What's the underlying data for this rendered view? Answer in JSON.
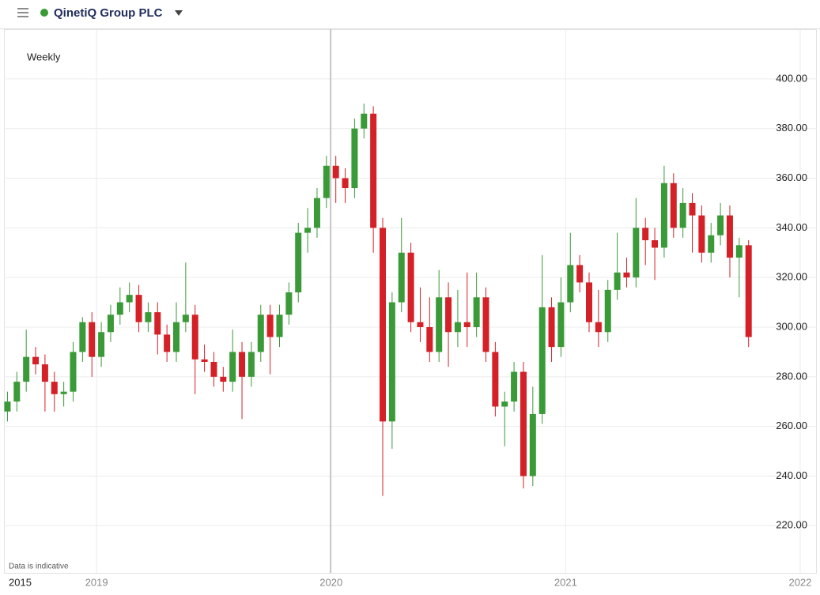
{
  "chart_data": {
    "type": "candlestick",
    "title": "QinetiQ Group PLC",
    "subtitle": "Weekly",
    "note": "Data is indicative",
    "corner_label": "2015",
    "up_color": "#3a9a37",
    "down_color": "#d42027",
    "grid": true,
    "xlim": [
      2018.605,
      2022.071
    ],
    "xticks": [
      2019,
      2020,
      2021,
      2022
    ],
    "ylim": [
      201,
      420
    ],
    "yticks": [
      {
        "value": 220,
        "label": "220.00"
      },
      {
        "value": 240,
        "label": "240.00"
      },
      {
        "value": 260,
        "label": "260.00"
      },
      {
        "value": 280,
        "label": "280.00"
      },
      {
        "value": 300,
        "label": "300.00"
      },
      {
        "value": 320,
        "label": "320.00"
      },
      {
        "value": 340,
        "label": "340.00"
      },
      {
        "value": 360,
        "label": "360.00"
      },
      {
        "value": 380,
        "label": "380.00"
      },
      {
        "value": 400,
        "label": "400.00"
      }
    ],
    "x": [
      2018.62,
      2018.66,
      2018.7,
      2018.74,
      2018.78,
      2018.82,
      2018.86,
      2018.9,
      2018.94,
      2018.98,
      2019.02,
      2019.06,
      2019.1,
      2019.14,
      2019.18,
      2019.22,
      2019.26,
      2019.3,
      2019.34,
      2019.38,
      2019.42,
      2019.46,
      2019.5,
      2019.54,
      2019.58,
      2019.62,
      2019.66,
      2019.7,
      2019.74,
      2019.78,
      2019.82,
      2019.86,
      2019.9,
      2019.94,
      2019.98,
      2020.02,
      2020.06,
      2020.1,
      2020.14,
      2020.18,
      2020.22,
      2020.26,
      2020.3,
      2020.34,
      2020.38,
      2020.42,
      2020.46,
      2020.5,
      2020.54,
      2020.58,
      2020.62,
      2020.66,
      2020.7,
      2020.74,
      2020.78,
      2020.82,
      2020.86,
      2020.9,
      2020.94,
      2020.98,
      2021.02,
      2021.06,
      2021.1,
      2021.14,
      2021.18,
      2021.22,
      2021.26,
      2021.3,
      2021.34,
      2021.38,
      2021.42,
      2021.46,
      2021.5,
      2021.54,
      2021.58,
      2021.62,
      2021.66,
      2021.7,
      2021.74,
      2021.78
    ],
    "open": [
      266,
      270,
      278,
      288,
      285,
      278,
      273,
      274,
      290,
      302,
      288,
      298,
      305,
      310,
      313,
      302,
      306,
      297,
      290,
      302,
      305,
      287,
      286,
      280,
      278,
      290,
      280,
      290,
      305,
      296,
      305,
      314,
      338,
      340,
      352,
      365,
      360,
      356,
      380,
      386,
      340,
      262,
      310,
      330,
      302,
      300,
      290,
      312,
      298,
      302,
      300,
      312,
      290,
      268,
      270,
      282,
      240,
      265,
      308,
      292,
      310,
      325,
      318,
      302,
      298,
      315,
      322,
      320,
      340,
      335,
      332,
      358,
      340,
      350,
      345,
      330,
      337,
      345,
      328,
      333
    ],
    "high": [
      274,
      282,
      299,
      292,
      289,
      282,
      278,
      294,
      304,
      306,
      302,
      309,
      316,
      318,
      317,
      310,
      310,
      301,
      310,
      326,
      309,
      293,
      290,
      284,
      299,
      294,
      294,
      309,
      309,
      309,
      318,
      342,
      348,
      356,
      369,
      369,
      364,
      384,
      390,
      389,
      344,
      314,
      344,
      334,
      316,
      312,
      323,
      318,
      315,
      322,
      322,
      316,
      294,
      274,
      286,
      286,
      276,
      329,
      312,
      320,
      338,
      329,
      322,
      315,
      319,
      338,
      328,
      352,
      344,
      340,
      365,
      362,
      356,
      354,
      349,
      342,
      350,
      349,
      336,
      335
    ],
    "low": [
      262,
      266,
      274,
      281,
      266,
      266,
      268,
      270,
      286,
      280,
      284,
      294,
      301,
      306,
      298,
      298,
      289,
      286,
      286,
      298,
      273,
      282,
      276,
      274,
      274,
      263,
      276,
      286,
      281,
      292,
      301,
      310,
      330,
      336,
      348,
      350,
      350,
      352,
      376,
      330,
      232,
      251,
      306,
      298,
      294,
      286,
      286,
      284,
      292,
      292,
      296,
      286,
      264,
      252,
      266,
      235,
      236,
      261,
      286,
      288,
      306,
      314,
      298,
      292,
      294,
      311,
      316,
      316,
      325,
      319,
      328,
      336,
      336,
      330,
      326,
      326,
      333,
      320,
      312,
      292
    ],
    "close": [
      270,
      278,
      288,
      285,
      278,
      273,
      274,
      290,
      302,
      288,
      298,
      305,
      310,
      313,
      302,
      306,
      297,
      290,
      302,
      305,
      287,
      286,
      280,
      278,
      290,
      280,
      290,
      305,
      296,
      305,
      314,
      338,
      340,
      352,
      365,
      360,
      356,
      380,
      386,
      340,
      262,
      310,
      330,
      302,
      300,
      290,
      312,
      298,
      302,
      300,
      312,
      290,
      268,
      270,
      282,
      240,
      265,
      308,
      292,
      310,
      325,
      318,
      302,
      298,
      315,
      322,
      320,
      340,
      335,
      332,
      358,
      340,
      350,
      345,
      330,
      337,
      345,
      328,
      333,
      296
    ]
  }
}
